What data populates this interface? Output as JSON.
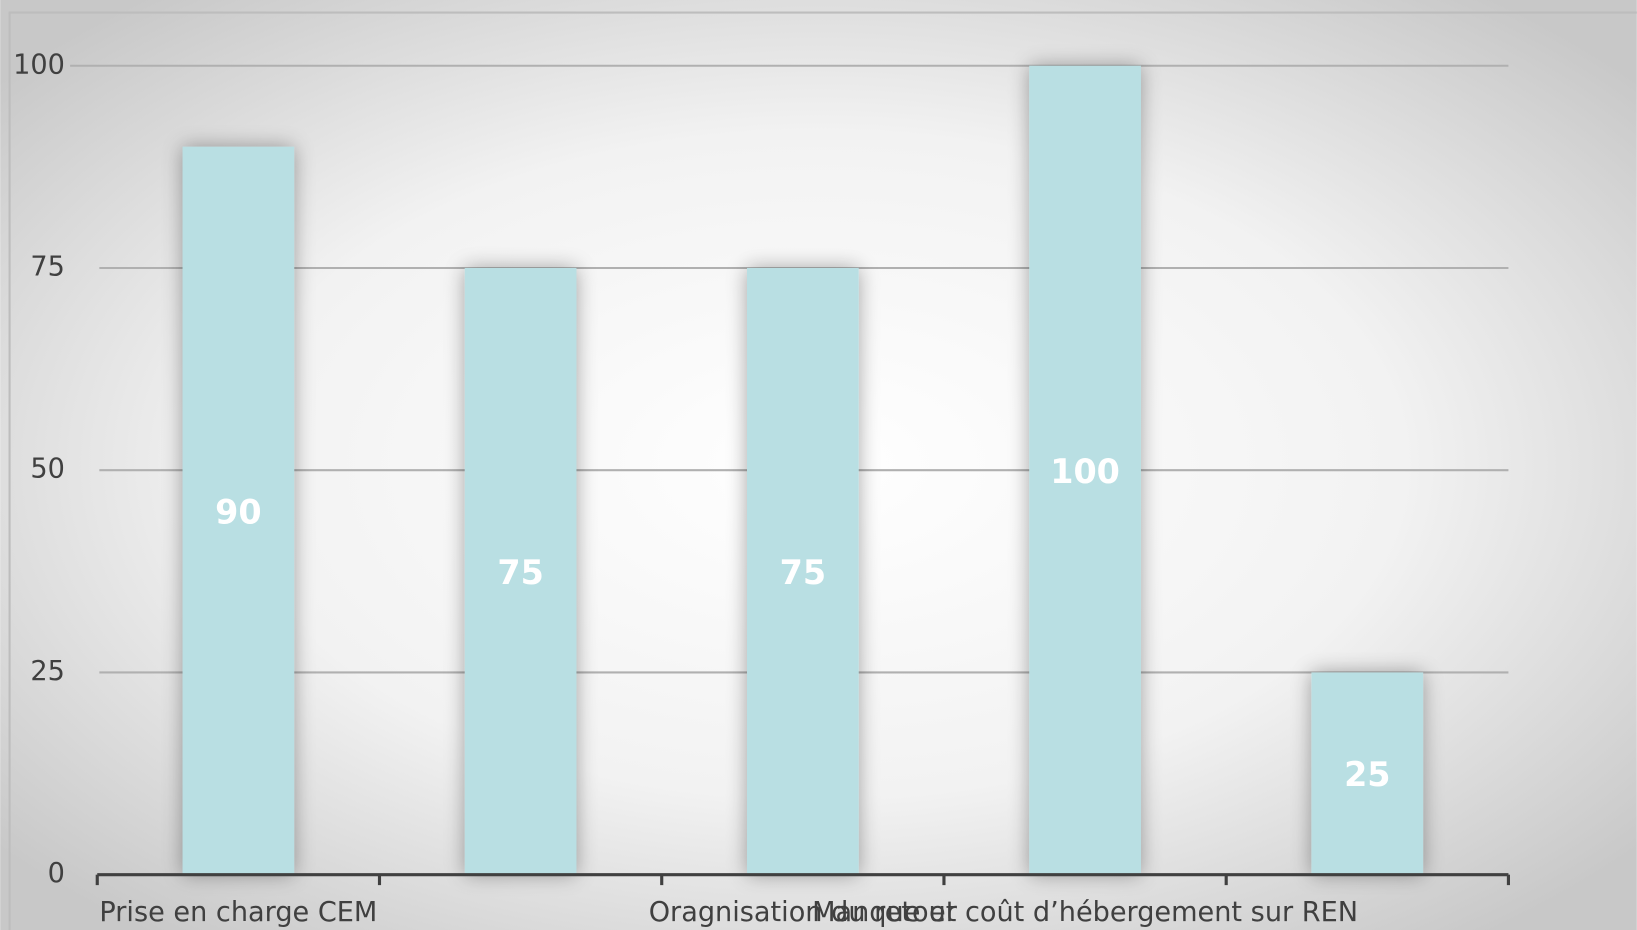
{
  "chart_data": {
    "type": "bar",
    "categories": [
      "Prise en charge CEM",
      null,
      "Oragnisation du retour",
      "Manque et coût d’hébergement sur REN",
      null
    ],
    "values": [
      90,
      75,
      75,
      100,
      25
    ],
    "color": "#b9dfe3",
    "ylim": [
      0,
      100
    ],
    "yticks": [
      0,
      25,
      50,
      75,
      100
    ],
    "grid": true
  }
}
